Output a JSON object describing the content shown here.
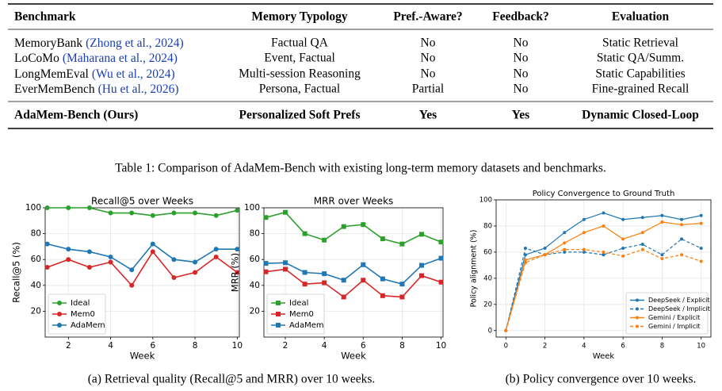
{
  "table": {
    "headers": [
      "Benchmark",
      "Memory Typology",
      "Pref.-Aware?",
      "Feedback?",
      "Evaluation"
    ],
    "rows": [
      {
        "benchmark": "MemoryBank",
        "cite": "(Zhong et al., 2024)",
        "cells": [
          "Factual QA",
          "No",
          "No",
          "Static Retrieval"
        ]
      },
      {
        "benchmark": "LoCoMo",
        "cite": "(Maharana et al., 2024)",
        "cells": [
          "Event, Factual",
          "No",
          "No",
          "Static QA/Summ."
        ]
      },
      {
        "benchmark": "LongMemEval",
        "cite": "(Wu et al., 2024)",
        "cells": [
          "Multi-session Reasoning",
          "No",
          "No",
          "Static Capabilities"
        ]
      },
      {
        "benchmark": "EverMemBench",
        "cite": "(Hu et al., 2026)",
        "cells": [
          "Persona, Factual",
          "Partial",
          "No",
          "Fine-grained Recall"
        ]
      }
    ],
    "ours": {
      "benchmark": "AdaMem-Bench (Ours)",
      "cells": [
        "Personalized Soft Prefs",
        "Yes",
        "Yes",
        "Dynamic Closed-Loop"
      ]
    },
    "caption": "Table 1: Comparison of AdaMem-Bench with existing long-term memory datasets and benchmarks."
  },
  "chart_data": [
    {
      "type": "line",
      "title": "Recall@5 over Weeks",
      "xlabel": "Week",
      "ylabel": "Recall@5 (%)",
      "x": [
        1,
        2,
        3,
        4,
        5,
        6,
        7,
        8,
        9,
        10
      ],
      "xlim": [
        0.9,
        10.1
      ],
      "xticks": [
        2,
        4,
        6,
        8,
        10
      ],
      "ylim": [
        0,
        100
      ],
      "yticks": [
        20,
        40,
        60,
        80,
        100
      ],
      "grid": true,
      "legend": "lower left",
      "series": [
        {
          "name": "Ideal",
          "color": "#2ca02c",
          "marker": "circle",
          "dashed": false,
          "values": [
            100,
            100,
            100,
            96,
            96,
            94,
            96,
            96,
            94,
            98
          ]
        },
        {
          "name": "Mem0",
          "color": "#d62728",
          "marker": "circle",
          "dashed": false,
          "values": [
            54,
            60,
            54,
            58,
            40,
            66,
            46,
            50,
            62,
            50
          ]
        },
        {
          "name": "AdaMem",
          "color": "#1f77b4",
          "marker": "circle",
          "dashed": false,
          "values": [
            72,
            68,
            66,
            62,
            52,
            72,
            60,
            58,
            68,
            68
          ]
        }
      ]
    },
    {
      "type": "line",
      "title": "MRR over Weeks",
      "xlabel": "Week",
      "ylabel": "MRR (%)",
      "x": [
        1,
        2,
        3,
        4,
        5,
        6,
        7,
        8,
        9,
        10
      ],
      "xlim": [
        0.9,
        10.1
      ],
      "xticks": [
        2,
        4,
        6,
        8,
        10
      ],
      "ylim": [
        0,
        100
      ],
      "yticks": [
        20,
        40,
        60,
        80,
        100
      ],
      "grid": true,
      "legend": "lower left",
      "series": [
        {
          "name": "Ideal",
          "color": "#2ca02c",
          "marker": "square",
          "dashed": false,
          "values": [
            92.5,
            96.5,
            80,
            75,
            85.5,
            87,
            76,
            72,
            79.5,
            73.5
          ]
        },
        {
          "name": "Mem0",
          "color": "#d62728",
          "marker": "square",
          "dashed": false,
          "values": [
            50.5,
            52.5,
            41,
            42,
            31,
            44,
            32,
            31,
            47.5,
            42.5
          ]
        },
        {
          "name": "AdaMem",
          "color": "#1f77b4",
          "marker": "square",
          "dashed": false,
          "values": [
            57,
            57.5,
            50,
            49,
            44,
            56,
            45,
            41,
            55.5,
            61
          ]
        }
      ]
    },
    {
      "type": "line",
      "title": "Policy Convergence to Ground Truth",
      "xlabel": "Week",
      "ylabel": "Policy alignment (%)",
      "x": [
        0,
        1,
        2,
        3,
        4,
        5,
        6,
        7,
        8,
        9,
        10
      ],
      "xlim": [
        -0.5,
        10.5
      ],
      "xticks": [
        0,
        2,
        4,
        6,
        8,
        10
      ],
      "ylim": [
        -5,
        100
      ],
      "yticks": [
        0,
        20,
        40,
        60,
        80,
        100
      ],
      "grid": true,
      "legend": "lower right",
      "series": [
        {
          "name": "DeepSeek / Explicit",
          "color": "#1f77b4",
          "marker": "circle",
          "dashed": false,
          "values": [
            0,
            58,
            63,
            75,
            85,
            90,
            85,
            86.5,
            88,
            85,
            88
          ]
        },
        {
          "name": "DeepSeek / Implicit",
          "color": "#1f77b4",
          "marker": "circle",
          "dashed": true,
          "values": [
            0,
            63,
            58,
            60,
            60,
            58,
            63,
            66,
            58,
            70,
            63
          ]
        },
        {
          "name": "Gemini / Explicit",
          "color": "#ff7f0e",
          "marker": "circle",
          "dashed": false,
          "values": [
            0,
            54,
            58,
            67,
            75,
            80,
            70,
            75,
            83,
            81,
            82
          ]
        },
        {
          "name": "Gemini / Implicit",
          "color": "#ff7f0e",
          "marker": "circle",
          "dashed": true,
          "values": [
            0,
            52,
            58,
            62,
            62,
            60,
            57,
            62,
            55,
            58,
            53
          ]
        }
      ]
    }
  ],
  "figure_captions": [
    "(a) Retrieval quality (Recall@5 and MRR) over 10 weeks.",
    "(b) Policy convergence over 10 weeks."
  ]
}
